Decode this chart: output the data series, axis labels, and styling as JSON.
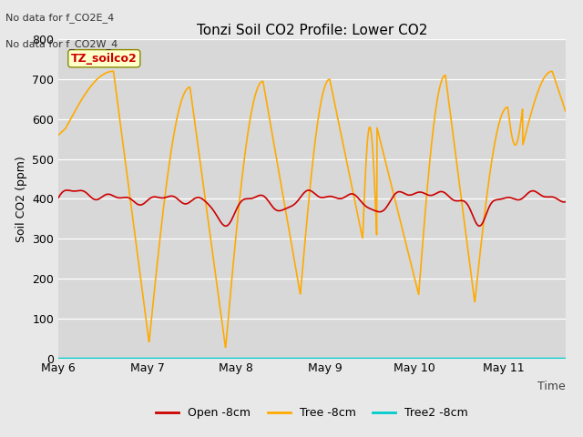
{
  "title": "Tonzi Soil CO2 Profile: Lower CO2",
  "xlabel": "Time",
  "ylabel": "Soil CO2 (ppm)",
  "ylim": [
    0,
    800
  ],
  "yticks": [
    0,
    100,
    200,
    300,
    400,
    500,
    600,
    700,
    800
  ],
  "fig_bg_color": "#e8e8e8",
  "plot_bg_color": "#d8d8d8",
  "annotations": [
    "No data for f_CO2E_4",
    "No data for f_CO2W_4"
  ],
  "legend_label": "TZ_soilco2",
  "legend_box_color": "#ffffcc",
  "series": {
    "open": {
      "color": "#cc0000",
      "label": "Open -8cm",
      "linewidth": 1.2
    },
    "tree": {
      "color": "#ffaa00",
      "label": "Tree -8cm",
      "linewidth": 1.2
    },
    "tree2": {
      "color": "#00cccc",
      "label": "Tree2 -8cm",
      "linewidth": 1.2
    }
  },
  "xtick_labels": [
    "May 6",
    "May 7",
    "May 8",
    "May 9",
    "May 10",
    "May 11"
  ],
  "xtick_positions": [
    0,
    1,
    2,
    3,
    4,
    5
  ]
}
